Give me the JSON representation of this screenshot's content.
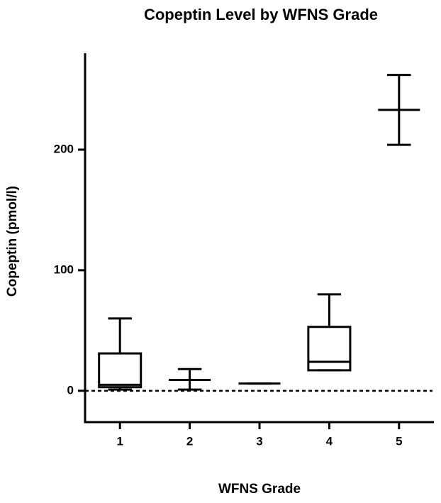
{
  "chart_data": {
    "type": "box",
    "title": "Copeptin Level by WFNS Grade",
    "x_label": "WFNS Grade",
    "y_label": "Copeptin (pmol/l)",
    "categories": [
      "1",
      "2",
      "3",
      "4",
      "5"
    ],
    "min": [
      1,
      1,
      6,
      17,
      204
    ],
    "q1": [
      3,
      9,
      6,
      17,
      233
    ],
    "median": [
      5,
      9,
      6,
      24,
      233
    ],
    "q3": [
      31,
      9,
      6,
      53,
      233
    ],
    "max": [
      60,
      18,
      6,
      80,
      262
    ],
    "color": "#000000",
    "ylim": [
      -26,
      280
    ],
    "yticks": [
      0,
      100,
      200
    ],
    "reference_line": 0
  }
}
